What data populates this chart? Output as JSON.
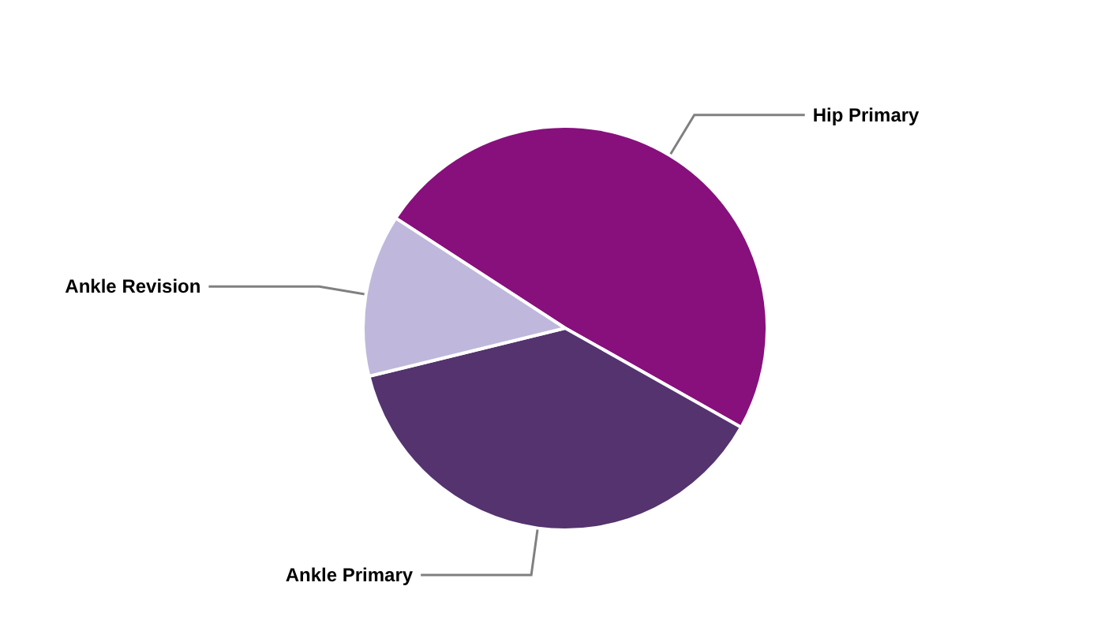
{
  "chart_data": {
    "type": "pie",
    "categories": [
      "Hip Primary",
      "Ankle Primary",
      "Ankle Revision"
    ],
    "values": [
      49,
      38,
      13
    ],
    "colors": [
      "#87107d",
      "#54336f",
      "#bfb8dc"
    ],
    "legend": false
  }
}
